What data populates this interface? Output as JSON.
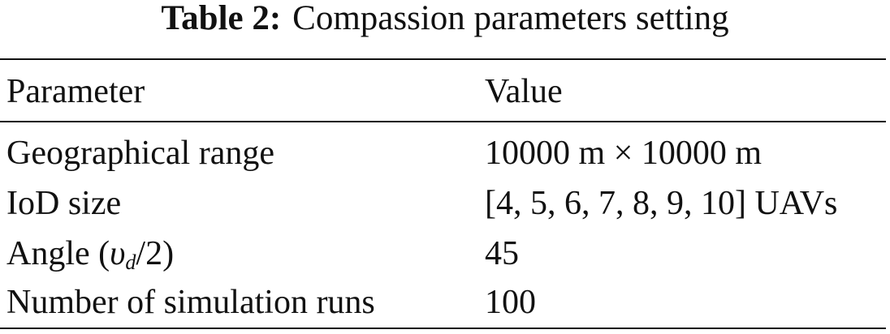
{
  "caption": {
    "label": "Table 2:",
    "text": "Compassion parameters setting"
  },
  "table": {
    "header": [
      "Parameter",
      "Value"
    ],
    "rows": [
      [
        "Geographical range",
        "10000 m × 10000 m"
      ],
      [
        "IoD size",
        "[4, 5, 6, 7, 8, 9, 10] UAVs"
      ],
      [
        {
          "parts": [
            "Angle (",
            "υ",
            "d",
            "/2)"
          ]
        },
        "45"
      ],
      [
        "Number of simulation runs",
        "100"
      ]
    ]
  }
}
